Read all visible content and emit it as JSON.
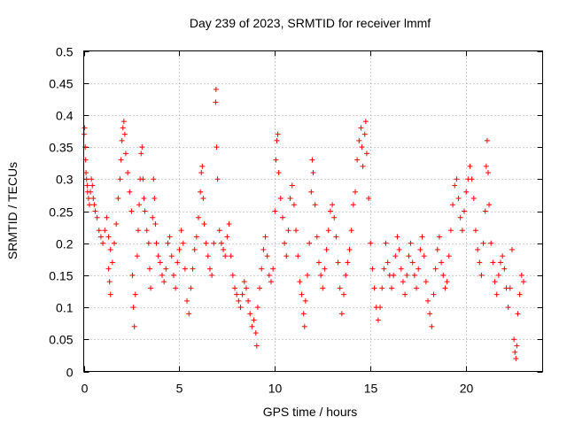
{
  "chart_data": {
    "type": "scatter",
    "title": "Day 239 of 2023, SRMTID for receiver lmmf",
    "xlabel": "GPS time / hours",
    "ylabel": "SRMTID / TECUs",
    "xlim": [
      0,
      24
    ],
    "ylim": [
      0,
      0.5
    ],
    "grid": true,
    "marker": "+",
    "color": "#ff0000",
    "x_ticks": [
      0,
      5,
      10,
      15,
      20
    ],
    "y_ticks": [
      0,
      0.05,
      0.1,
      0.15,
      0.2,
      0.25,
      0.3,
      0.35,
      0.4,
      0.45,
      0.5
    ],
    "x_tick_labels": [
      "0",
      "5",
      "10",
      "15",
      "20"
    ],
    "y_tick_labels": [
      "0",
      "0.05",
      "0.1",
      "0.15",
      "0.2",
      "0.25",
      "0.3",
      "0.35",
      "0.4",
      "0.45",
      "0.5"
    ],
    "series": [
      {
        "name": "SRMTID",
        "points": [
          [
            0.02,
            0.37
          ],
          [
            0.05,
            0.38
          ],
          [
            0.08,
            0.35
          ],
          [
            0.1,
            0.33
          ],
          [
            0.12,
            0.31
          ],
          [
            0.15,
            0.3
          ],
          [
            0.18,
            0.29
          ],
          [
            0.2,
            0.28
          ],
          [
            0.25,
            0.27
          ],
          [
            0.3,
            0.26
          ],
          [
            0.35,
            0.28
          ],
          [
            0.4,
            0.3
          ],
          [
            0.45,
            0.29
          ],
          [
            0.5,
            0.27
          ],
          [
            0.55,
            0.26
          ],
          [
            0.6,
            0.25
          ],
          [
            0.7,
            0.24
          ],
          [
            0.8,
            0.22
          ],
          [
            0.9,
            0.21
          ],
          [
            1.0,
            0.2
          ],
          [
            1.1,
            0.22
          ],
          [
            1.2,
            0.24
          ],
          [
            1.3,
            0.21
          ],
          [
            1.4,
            0.19
          ],
          [
            1.5,
            0.17
          ],
          [
            1.3,
            0.16
          ],
          [
            1.35,
            0.14
          ],
          [
            1.4,
            0.12
          ],
          [
            1.6,
            0.2
          ],
          [
            1.7,
            0.23
          ],
          [
            1.8,
            0.27
          ],
          [
            1.9,
            0.3
          ],
          [
            1.95,
            0.33
          ],
          [
            2.0,
            0.36
          ],
          [
            2.05,
            0.38
          ],
          [
            2.1,
            0.39
          ],
          [
            2.15,
            0.37
          ],
          [
            2.2,
            0.34
          ],
          [
            2.3,
            0.31
          ],
          [
            2.4,
            0.28
          ],
          [
            2.5,
            0.25
          ],
          [
            2.55,
            0.15
          ],
          [
            2.6,
            0.1
          ],
          [
            2.65,
            0.07
          ],
          [
            2.7,
            0.12
          ],
          [
            2.8,
            0.18
          ],
          [
            2.85,
            0.22
          ],
          [
            2.9,
            0.26
          ],
          [
            2.95,
            0.3
          ],
          [
            3.0,
            0.34
          ],
          [
            3.05,
            0.35
          ],
          [
            3.1,
            0.3
          ],
          [
            3.15,
            0.27
          ],
          [
            3.2,
            0.25
          ],
          [
            3.3,
            0.22
          ],
          [
            3.4,
            0.2
          ],
          [
            3.45,
            0.16
          ],
          [
            3.5,
            0.13
          ],
          [
            3.6,
            0.24
          ],
          [
            3.65,
            0.3
          ],
          [
            3.7,
            0.27
          ],
          [
            3.75,
            0.23
          ],
          [
            3.8,
            0.2
          ],
          [
            3.9,
            0.18
          ],
          [
            4.0,
            0.17
          ],
          [
            4.1,
            0.15
          ],
          [
            4.2,
            0.14
          ],
          [
            4.3,
            0.16
          ],
          [
            4.4,
            0.2
          ],
          [
            4.5,
            0.21
          ],
          [
            4.6,
            0.18
          ],
          [
            4.7,
            0.15
          ],
          [
            4.8,
            0.13
          ],
          [
            4.9,
            0.17
          ],
          [
            5.0,
            0.19
          ],
          [
            5.1,
            0.22
          ],
          [
            5.2,
            0.2
          ],
          [
            5.3,
            0.16
          ],
          [
            5.4,
            0.11
          ],
          [
            5.5,
            0.09
          ],
          [
            5.6,
            0.13
          ],
          [
            5.7,
            0.16
          ],
          [
            5.8,
            0.19
          ],
          [
            5.9,
            0.21
          ],
          [
            6.0,
            0.24
          ],
          [
            6.1,
            0.28
          ],
          [
            6.15,
            0.31
          ],
          [
            6.2,
            0.32
          ],
          [
            6.25,
            0.27
          ],
          [
            6.3,
            0.23
          ],
          [
            6.4,
            0.2
          ],
          [
            6.5,
            0.18
          ],
          [
            6.6,
            0.16
          ],
          [
            6.7,
            0.15
          ],
          [
            6.8,
            0.2
          ],
          [
            6.9,
            0.42
          ],
          [
            6.92,
            0.44
          ],
          [
            6.95,
            0.35
          ],
          [
            7.0,
            0.3
          ],
          [
            7.1,
            0.22
          ],
          [
            7.2,
            0.2
          ],
          [
            7.3,
            0.19
          ],
          [
            7.4,
            0.18
          ],
          [
            7.5,
            0.21
          ],
          [
            7.6,
            0.23
          ],
          [
            7.7,
            0.18
          ],
          [
            7.8,
            0.15
          ],
          [
            7.9,
            0.13
          ],
          [
            8.0,
            0.12
          ],
          [
            8.1,
            0.11
          ],
          [
            8.2,
            0.1
          ],
          [
            8.3,
            0.12
          ],
          [
            8.4,
            0.14
          ],
          [
            8.5,
            0.13
          ],
          [
            8.6,
            0.11
          ],
          [
            8.7,
            0.09
          ],
          [
            8.8,
            0.07
          ],
          [
            8.9,
            0.08
          ],
          [
            9.0,
            0.06
          ],
          [
            9.05,
            0.04
          ],
          [
            9.1,
            0.1
          ],
          [
            9.2,
            0.13
          ],
          [
            9.3,
            0.16
          ],
          [
            9.4,
            0.19
          ],
          [
            9.5,
            0.21
          ],
          [
            9.6,
            0.18
          ],
          [
            9.7,
            0.15
          ],
          [
            9.8,
            0.14
          ],
          [
            9.9,
            0.16
          ],
          [
            10.0,
            0.25
          ],
          [
            10.05,
            0.33
          ],
          [
            10.1,
            0.36
          ],
          [
            10.15,
            0.37
          ],
          [
            10.2,
            0.31
          ],
          [
            10.3,
            0.27
          ],
          [
            10.4,
            0.24
          ],
          [
            10.5,
            0.2
          ],
          [
            10.6,
            0.18
          ],
          [
            10.7,
            0.22
          ],
          [
            10.8,
            0.27
          ],
          [
            10.9,
            0.29
          ],
          [
            11.0,
            0.26
          ],
          [
            11.1,
            0.22
          ],
          [
            11.2,
            0.18
          ],
          [
            11.3,
            0.14
          ],
          [
            11.4,
            0.12
          ],
          [
            11.5,
            0.09
          ],
          [
            11.55,
            0.07
          ],
          [
            11.6,
            0.11
          ],
          [
            11.7,
            0.15
          ],
          [
            11.8,
            0.2
          ],
          [
            11.9,
            0.28
          ],
          [
            11.95,
            0.33
          ],
          [
            12.0,
            0.31
          ],
          [
            12.1,
            0.26
          ],
          [
            12.2,
            0.21
          ],
          [
            12.3,
            0.17
          ],
          [
            12.4,
            0.15
          ],
          [
            12.5,
            0.13
          ],
          [
            12.6,
            0.16
          ],
          [
            12.7,
            0.19
          ],
          [
            12.8,
            0.22
          ],
          [
            12.9,
            0.25
          ],
          [
            13.0,
            0.26
          ],
          [
            13.1,
            0.24
          ],
          [
            13.2,
            0.21
          ],
          [
            13.3,
            0.17
          ],
          [
            13.4,
            0.13
          ],
          [
            13.5,
            0.09
          ],
          [
            13.6,
            0.12
          ],
          [
            13.7,
            0.15
          ],
          [
            13.8,
            0.17
          ],
          [
            13.9,
            0.19
          ],
          [
            14.0,
            0.22
          ],
          [
            14.1,
            0.26
          ],
          [
            14.2,
            0.28
          ],
          [
            14.3,
            0.33
          ],
          [
            14.4,
            0.36
          ],
          [
            14.5,
            0.38
          ],
          [
            14.55,
            0.35
          ],
          [
            14.6,
            0.32
          ],
          [
            14.7,
            0.37
          ],
          [
            14.75,
            0.39
          ],
          [
            14.8,
            0.34
          ],
          [
            14.9,
            0.27
          ],
          [
            15.0,
            0.2
          ],
          [
            15.1,
            0.16
          ],
          [
            15.2,
            0.13
          ],
          [
            15.3,
            0.1
          ],
          [
            15.4,
            0.08
          ],
          [
            15.5,
            0.1
          ],
          [
            15.6,
            0.13
          ],
          [
            15.7,
            0.16
          ],
          [
            15.8,
            0.2
          ],
          [
            15.9,
            0.17
          ],
          [
            16.0,
            0.15
          ],
          [
            16.1,
            0.13
          ],
          [
            16.2,
            0.15
          ],
          [
            16.3,
            0.18
          ],
          [
            16.4,
            0.21
          ],
          [
            16.5,
            0.19
          ],
          [
            16.6,
            0.16
          ],
          [
            16.7,
            0.14
          ],
          [
            16.8,
            0.12
          ],
          [
            16.9,
            0.15
          ],
          [
            17.0,
            0.18
          ],
          [
            17.1,
            0.2
          ],
          [
            17.2,
            0.17
          ],
          [
            17.3,
            0.15
          ],
          [
            17.4,
            0.13
          ],
          [
            17.5,
            0.16
          ],
          [
            17.6,
            0.19
          ],
          [
            17.7,
            0.21
          ],
          [
            17.8,
            0.18
          ],
          [
            17.9,
            0.14
          ],
          [
            18.0,
            0.11
          ],
          [
            18.1,
            0.09
          ],
          [
            18.2,
            0.07
          ],
          [
            18.3,
            0.12
          ],
          [
            18.4,
            0.16
          ],
          [
            18.5,
            0.19
          ],
          [
            18.6,
            0.21
          ],
          [
            18.7,
            0.17
          ],
          [
            18.8,
            0.15
          ],
          [
            18.9,
            0.13
          ],
          [
            19.0,
            0.14
          ],
          [
            19.1,
            0.18
          ],
          [
            19.2,
            0.22
          ],
          [
            19.3,
            0.26
          ],
          [
            19.4,
            0.29
          ],
          [
            19.5,
            0.3
          ],
          [
            19.6,
            0.27
          ],
          [
            19.7,
            0.24
          ],
          [
            19.8,
            0.22
          ],
          [
            19.9,
            0.25
          ],
          [
            20.0,
            0.28
          ],
          [
            20.1,
            0.3
          ],
          [
            20.2,
            0.32
          ],
          [
            20.3,
            0.3
          ],
          [
            20.4,
            0.27
          ],
          [
            20.5,
            0.22
          ],
          [
            20.6,
            0.19
          ],
          [
            20.7,
            0.17
          ],
          [
            20.8,
            0.15
          ],
          [
            20.9,
            0.2
          ],
          [
            21.0,
            0.25
          ],
          [
            21.05,
            0.32
          ],
          [
            21.1,
            0.36
          ],
          [
            21.15,
            0.31
          ],
          [
            21.2,
            0.26
          ],
          [
            21.3,
            0.2
          ],
          [
            21.4,
            0.17
          ],
          [
            21.5,
            0.14
          ],
          [
            21.6,
            0.12
          ],
          [
            21.7,
            0.15
          ],
          [
            21.8,
            0.17
          ],
          [
            21.9,
            0.18
          ],
          [
            22.0,
            0.16
          ],
          [
            22.1,
            0.13
          ],
          [
            22.2,
            0.1
          ],
          [
            22.3,
            0.13
          ],
          [
            22.4,
            0.19
          ],
          [
            22.5,
            0.05
          ],
          [
            22.55,
            0.03
          ],
          [
            22.6,
            0.02
          ],
          [
            22.65,
            0.04
          ],
          [
            22.7,
            0.09
          ],
          [
            22.8,
            0.12
          ],
          [
            22.9,
            0.15
          ],
          [
            23.0,
            0.14
          ]
        ]
      }
    ]
  }
}
